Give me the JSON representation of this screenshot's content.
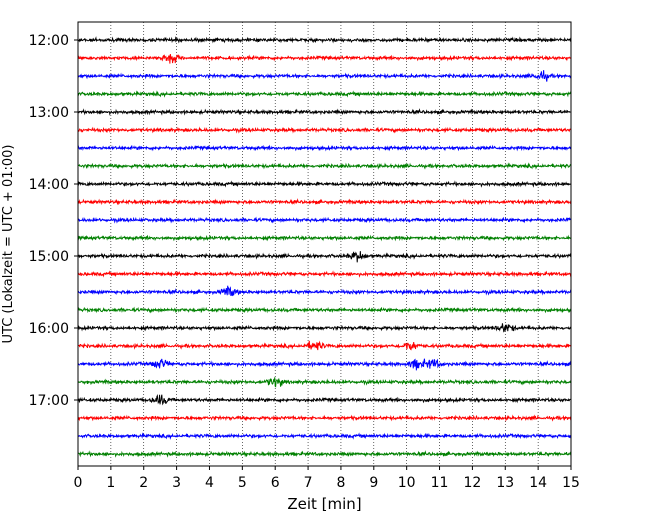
{
  "chart_data": {
    "type": "line",
    "xlabel": "Zeit  [min]",
    "ylabel": "UTC (Lokalzeit = UTC + 01:00)",
    "xlim": [
      0,
      15
    ],
    "x_ticks": [
      "0",
      "1",
      "2",
      "3",
      "4",
      "5",
      "6",
      "7",
      "8",
      "9",
      "10",
      "11",
      "12",
      "13",
      "14",
      "15"
    ],
    "y_ticks": [
      "12:00",
      "13:00",
      "14:00",
      "15:00",
      "16:00",
      "17:00"
    ],
    "grid": "vertical dotted",
    "trace_colors": [
      "#000000",
      "#ff0000",
      "#0000ff",
      "#008000"
    ],
    "traces": [
      {
        "start": "12:00",
        "color": "#000000",
        "events": []
      },
      {
        "start": "12:15",
        "color": "#ff0000",
        "events": [
          2.8
        ]
      },
      {
        "start": "12:30",
        "color": "#0000ff",
        "events": [
          14.1
        ]
      },
      {
        "start": "12:45",
        "color": "#008000",
        "events": []
      },
      {
        "start": "13:00",
        "color": "#000000",
        "events": []
      },
      {
        "start": "13:15",
        "color": "#ff0000",
        "events": []
      },
      {
        "start": "13:30",
        "color": "#0000ff",
        "events": []
      },
      {
        "start": "13:45",
        "color": "#008000",
        "events": []
      },
      {
        "start": "14:00",
        "color": "#000000",
        "events": []
      },
      {
        "start": "14:15",
        "color": "#ff0000",
        "events": []
      },
      {
        "start": "14:30",
        "color": "#0000ff",
        "events": []
      },
      {
        "start": "14:45",
        "color": "#008000",
        "events": []
      },
      {
        "start": "15:00",
        "color": "#000000",
        "events": [
          8.5
        ]
      },
      {
        "start": "15:15",
        "color": "#ff0000",
        "events": []
      },
      {
        "start": "15:30",
        "color": "#0000ff",
        "events": [
          4.6
        ]
      },
      {
        "start": "15:45",
        "color": "#008000",
        "events": []
      },
      {
        "start": "16:00",
        "color": "#000000",
        "events": [
          13.0
        ]
      },
      {
        "start": "16:15",
        "color": "#ff0000",
        "events": [
          7.2,
          10.1
        ]
      },
      {
        "start": "16:30",
        "color": "#0000ff",
        "events": [
          2.5,
          10.3,
          10.8
        ]
      },
      {
        "start": "16:45",
        "color": "#008000",
        "events": [
          6.0
        ]
      },
      {
        "start": "17:00",
        "color": "#000000",
        "events": [
          2.5
        ]
      },
      {
        "start": "17:15",
        "color": "#ff0000",
        "events": []
      },
      {
        "start": "17:30",
        "color": "#0000ff",
        "events": []
      },
      {
        "start": "17:45",
        "color": "#008000",
        "events": []
      }
    ]
  }
}
